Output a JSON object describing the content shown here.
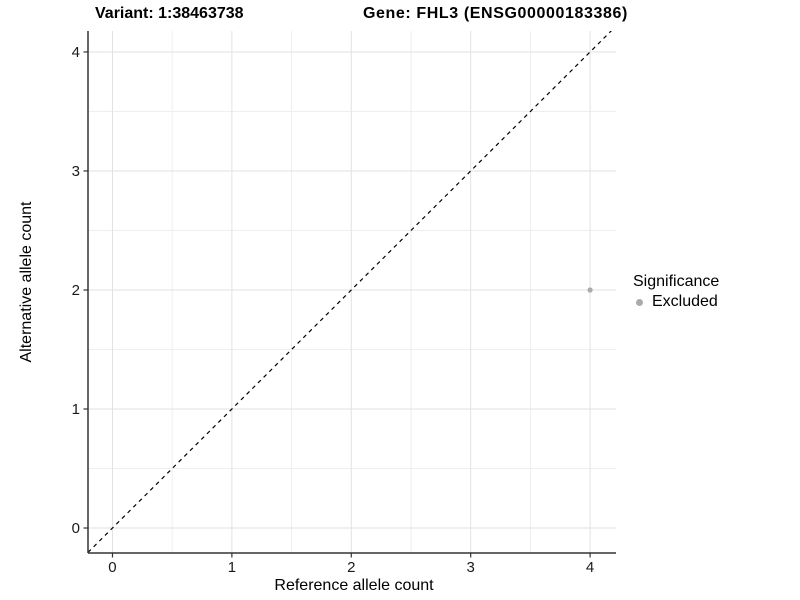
{
  "titles": {
    "variant": "Variant: 1:38463738",
    "gene": "Gene: FHL3 (ENSG00000183386)"
  },
  "legend": {
    "title": "Significance",
    "items": [
      {
        "label": "Excluded",
        "color": "#ababab",
        "marker": "dot-icon"
      }
    ]
  },
  "chart_data": {
    "type": "scatter",
    "title": "",
    "xlabel": "Reference allele count",
    "ylabel": "Alternative allele count",
    "xlim": [
      -0.205,
      4.217
    ],
    "ylim": [
      -0.21,
      4.176
    ],
    "x_ticks": [
      0,
      1,
      2,
      3,
      4
    ],
    "y_ticks": [
      0,
      1,
      2,
      3,
      4
    ],
    "minor_grid_step": 0.5,
    "grid": "on",
    "legend_position": "right",
    "identity_line": {
      "type": "dashed",
      "color": "#000000",
      "from": -0.3,
      "to": 4.3
    },
    "series": [
      {
        "name": "Excluded",
        "color": "#ababab",
        "point_radius": 2.6,
        "points": [
          {
            "x": 4,
            "y": 2
          }
        ]
      }
    ],
    "style": {
      "grid_major_color": "#e2e2e2",
      "grid_minor_color": "#eeeeee",
      "axis_line_color": "#333333",
      "tick_color": "#333333",
      "tick_label_color": "#1a1a1a",
      "background": "#ffffff"
    }
  }
}
